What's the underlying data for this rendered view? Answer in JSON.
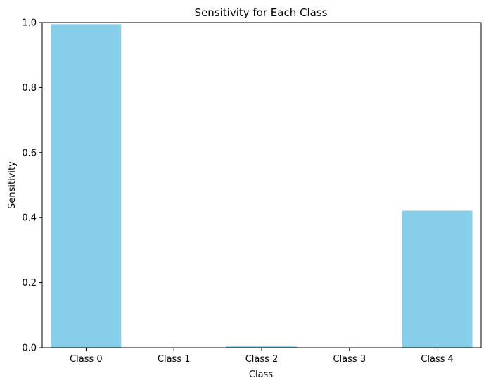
{
  "chart_data": {
    "type": "bar",
    "title": "Sensitivity for Each Class",
    "xlabel": "Class",
    "ylabel": "Sensitivity",
    "categories": [
      "Class 0",
      "Class 1",
      "Class 2",
      "Class 3",
      "Class 4"
    ],
    "values": [
      0.995,
      0.0,
      0.004,
      0.0,
      0.421
    ],
    "ylim": [
      0,
      1.0
    ],
    "yticks": [
      "0.0",
      "0.2",
      "0.4",
      "0.6",
      "0.8",
      "1.0"
    ],
    "grid": false,
    "bar_color": "#87CEEB"
  }
}
